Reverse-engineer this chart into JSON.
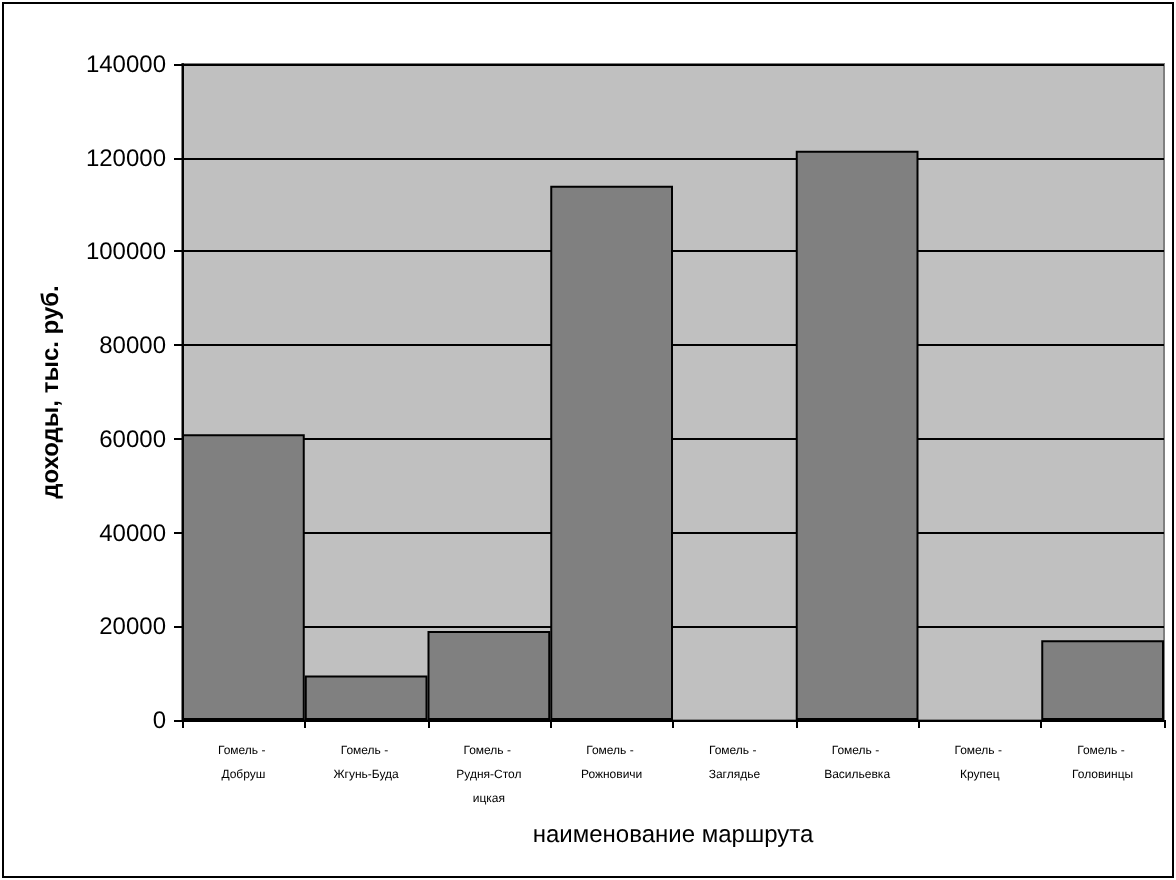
{
  "chart_data": {
    "type": "bar",
    "xlabel": "наименование маршрута",
    "ylabel": "доходы, тыс. руб.",
    "categories": [
      "Гомель - Добруш",
      "Гомель - Жгунь-Буда",
      "Гомель - Рудня-Столицкая",
      "Гомель - Рожновичи",
      "Гомель - Заглядье",
      "Гомель - Васильевка",
      "Гомель - Крупец",
      "Гомель - Головинцы"
    ],
    "values": [
      61000,
      9500,
      19000,
      114000,
      null,
      121500,
      null,
      17000
    ],
    "color": "#808080",
    "ylim": [
      0,
      140000
    ],
    "yticks": [
      0,
      20000,
      40000,
      60000,
      80000,
      100000,
      120000,
      140000
    ],
    "grid": "y"
  }
}
